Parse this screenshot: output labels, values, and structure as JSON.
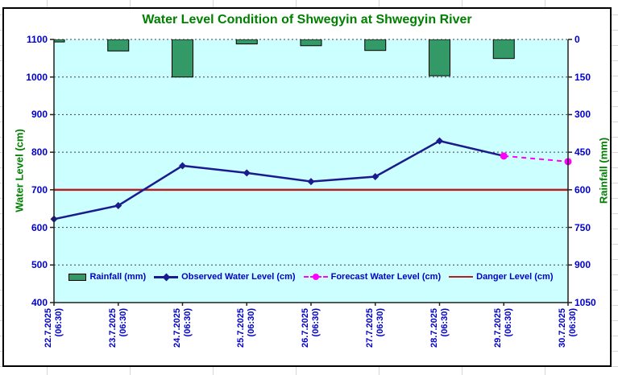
{
  "title": "Water Level Condition of Shwegyin at Shwegyin River",
  "legend": {
    "items": [
      {
        "label": "Rainfall (mm)"
      },
      {
        "label": "Observed Water Level (cm)"
      },
      {
        "label": "Forecast Water Level (cm)"
      },
      {
        "label": "Danger Level (cm)"
      }
    ]
  },
  "colors": {
    "plot_bg": "#CCFFFF",
    "bar_fill": "#339966",
    "bar_border": "#000000",
    "observed_line": "#1b1b8f",
    "forecast_line": "#ff00ff",
    "danger_line": "#b22222",
    "title_green": "#008000",
    "axis_text_blue": "#0000CC",
    "gridline": "#404040"
  },
  "chart_data": {
    "type": "combo: bar + line",
    "categories": [
      "22.7.2025",
      "23.7.2025",
      "24.7.2025",
      "25.7.2025",
      "26.7.2025",
      "27.7.2025",
      "28.7.2025",
      "29.7.2025",
      "30.7.2025"
    ],
    "time_label": "(06:30)",
    "left_axis": {
      "title": "Water Level (cm)",
      "min": 400,
      "max": 1100,
      "ticks": [
        "1100",
        "1000",
        "900",
        "800",
        "700",
        "600",
        "500",
        "400"
      ]
    },
    "right_axis": {
      "title": "Rainfall (mm)",
      "min": 0,
      "max": 1050,
      "direction": "downward-from-top",
      "ticks": [
        "0",
        "150",
        "300",
        "450",
        "600",
        "750",
        "900",
        "1050"
      ]
    },
    "series": {
      "rainfall_mm": {
        "type": "bar",
        "axis": "right",
        "values": [
          10,
          46,
          150,
          18,
          25,
          44,
          145,
          76,
          0
        ]
      },
      "observed_wl_cm": {
        "type": "line-diamond",
        "axis": "left",
        "indices": [
          0,
          1,
          2,
          3,
          4,
          5,
          6,
          7
        ],
        "values": [
          622,
          658,
          764,
          745,
          722,
          735,
          830,
          790
        ]
      },
      "forecast_wl_cm": {
        "type": "dashed-line-circle",
        "axis": "left",
        "indices": [
          7,
          8
        ],
        "values": [
          790,
          775
        ]
      },
      "danger_level_cm": {
        "type": "hline",
        "axis": "left",
        "value": 700
      }
    },
    "legend_position": "bottom-inside",
    "grid": "horizontal-dotted"
  }
}
